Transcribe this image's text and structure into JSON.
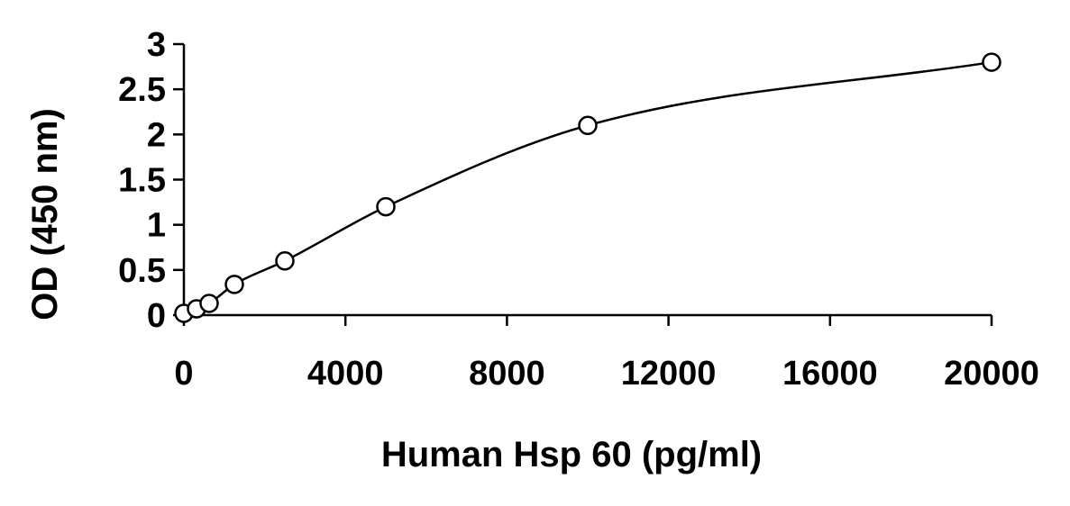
{
  "chart_data": {
    "type": "scatter",
    "xlabel": "Human Hsp 60 (pg/ml)",
    "ylabel": "OD (450 nm)",
    "xlim": [
      0,
      20000
    ],
    "ylim": [
      0,
      3
    ],
    "x_ticks": [
      "0",
      "4000",
      "8000",
      "12000",
      "16000",
      "20000"
    ],
    "y_ticks": [
      "0",
      "0.5",
      "1",
      "1.5",
      "2",
      "2.5",
      "3"
    ],
    "grid": false,
    "legend": "none",
    "fit": "smooth-curve",
    "series": [
      {
        "x": [
          0,
          312.5,
          625,
          1250,
          2500,
          5000,
          10000,
          20000
        ],
        "y": [
          0.02,
          0.07,
          0.13,
          0.34,
          0.6,
          1.2,
          2.1,
          2.8
        ]
      }
    ],
    "colors": {
      "line": "#000000",
      "marker_fill": "#ffffff"
    }
  }
}
